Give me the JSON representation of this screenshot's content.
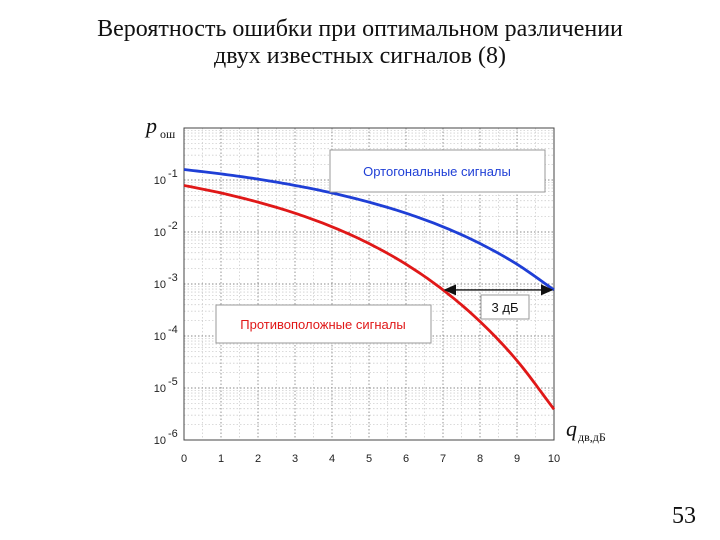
{
  "slide": {
    "title_line1": "Вероятность ошибки при оптимальном различении",
    "title_line2": "двух известных сигналов (8)",
    "page_number": "53"
  },
  "chart_data": {
    "type": "line",
    "xlabel": {
      "symbol": "q",
      "subscript": "дв,дБ"
    },
    "ylabel": {
      "symbol": "p",
      "subscript": "ош"
    },
    "x_ticks": [
      "0",
      "1",
      "2",
      "3",
      "4",
      "5",
      "6",
      "7",
      "8",
      "9",
      "10"
    ],
    "y_ticks": [
      {
        "value": 0.1,
        "base": "10",
        "exp": "-1"
      },
      {
        "value": 0.01,
        "base": "10",
        "exp": "-2"
      },
      {
        "value": 0.001,
        "base": "10",
        "exp": "-3"
      },
      {
        "value": 0.0001,
        "base": "10",
        "exp": "-4"
      },
      {
        "value": 1e-05,
        "base": "10",
        "exp": "-5"
      },
      {
        "value": 1e-06,
        "base": "10",
        "exp": "-6"
      }
    ],
    "xlim": [
      0,
      10
    ],
    "ylim": [
      1e-06,
      1
    ],
    "yscale": "log",
    "grid": true,
    "series": [
      {
        "name": "Ортогональные сигналы",
        "color": "#1f3fd6",
        "x": [
          0,
          1,
          2,
          3,
          4,
          5,
          6,
          7,
          8,
          9,
          10
        ],
        "values": [
          0.159,
          0.131,
          0.104,
          0.0786,
          0.0563,
          0.0375,
          0.023,
          0.0126,
          0.006,
          0.0024,
          0.00077
        ]
      },
      {
        "name": "Противоположные сигналы",
        "color": "#e01818",
        "x": [
          0,
          1,
          2,
          3,
          4,
          5,
          6,
          7,
          8,
          9,
          10
        ],
        "values": [
          0.0786,
          0.0563,
          0.0375,
          0.023,
          0.0126,
          0.006,
          0.0024,
          0.00077,
          0.00019,
          3.36e-05,
          3.9e-06
        ]
      }
    ],
    "annotation": {
      "text": "3 дБ",
      "x_from": 7,
      "x_to": 10,
      "at_value": 0.00077
    }
  }
}
